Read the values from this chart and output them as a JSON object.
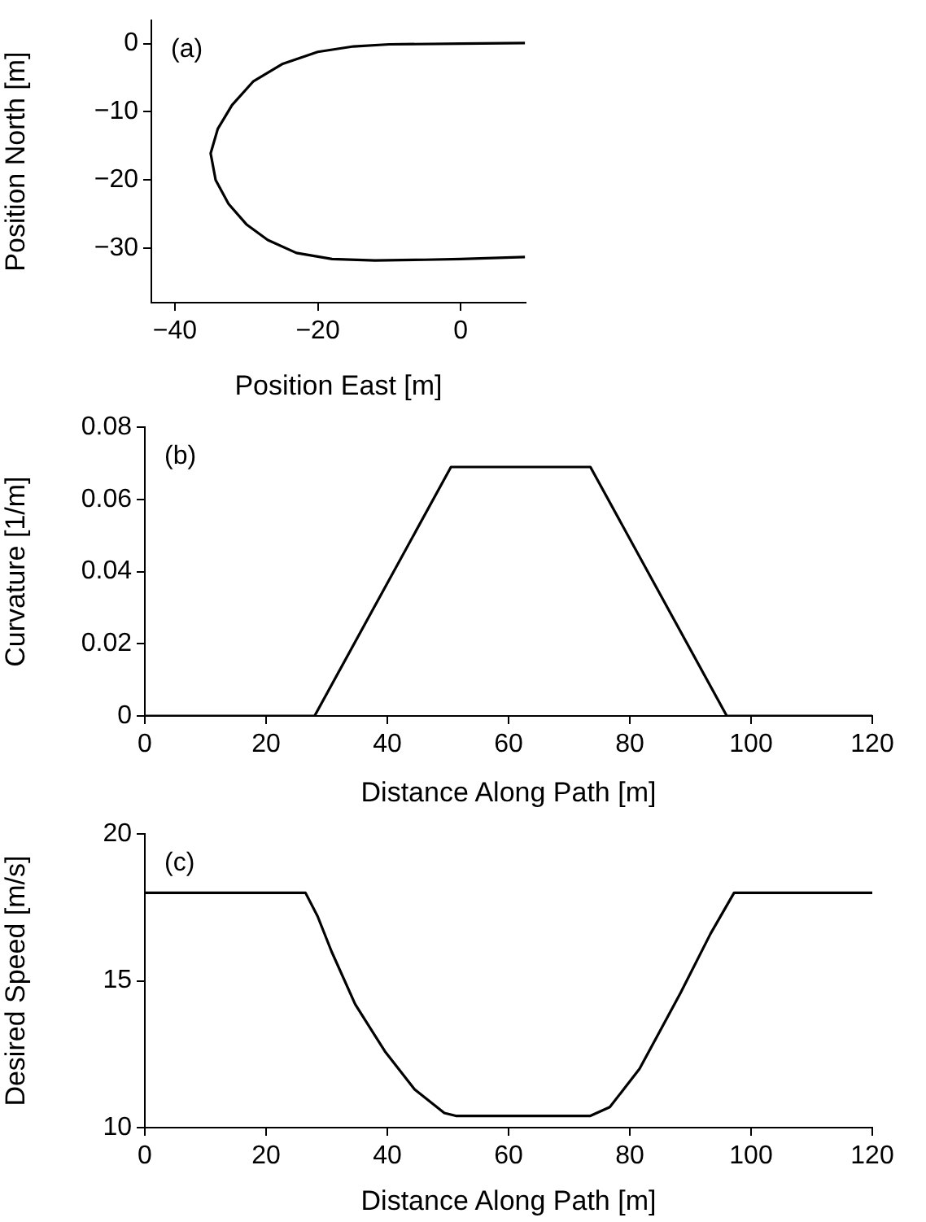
{
  "chart_data": [
    {
      "type": "line",
      "xlabel": "Position East [m]",
      "ylabel": "Position North [m]",
      "annotations": [
        "(a)"
      ],
      "color": "#000000",
      "marker": "none",
      "x": [
        9,
        0,
        -10,
        -15,
        -20,
        -25,
        -29,
        -32,
        -34,
        -35,
        -34.3,
        -32.5,
        -30,
        -27,
        -23,
        -18,
        -12,
        -5,
        0,
        9
      ],
      "values": [
        0.1,
        0,
        -0.1,
        -0.4,
        -1.2,
        -3,
        -5.5,
        -9,
        -12.5,
        -16.1,
        -20,
        -23.5,
        -26.5,
        -28.8,
        -30.7,
        -31.6,
        -31.8,
        -31.7,
        -31.6,
        -31.3
      ],
      "xlim": [
        -43.3,
        9.1
      ],
      "ylim": [
        -38,
        3.4
      ],
      "xticks": [
        -40,
        -20,
        0
      ],
      "yticks": [
        -30,
        -20,
        -10,
        0
      ]
    },
    {
      "type": "line",
      "xlabel": "Distance Along Path [m]",
      "ylabel": "Curvature [1/m]",
      "annotations": [
        "(b)"
      ],
      "color": "#000000",
      "marker": "none",
      "x": [
        0,
        28,
        50.5,
        73.5,
        96,
        120
      ],
      "values": [
        0,
        0,
        0.069,
        0.069,
        0,
        0
      ],
      "xlim": [
        0,
        120
      ],
      "ylim": [
        0,
        0.08
      ],
      "xticks": [
        0,
        20,
        40,
        60,
        80,
        100,
        120
      ],
      "yticks": [
        0,
        0.02,
        0.04,
        0.06,
        0.08
      ]
    },
    {
      "type": "line",
      "xlabel": "Distance Along Path [m]",
      "ylabel": "Desired Speed [m/s]",
      "annotations": [
        "(c)"
      ],
      "color": "#000000",
      "marker": "none",
      "x": [
        0,
        26.5,
        28.5,
        30.8,
        34.7,
        39.6,
        44.5,
        49.4,
        51.3,
        73.5,
        76.7,
        81.6,
        88.4,
        93.3,
        97.2,
        120
      ],
      "values": [
        18,
        18,
        17.2,
        16,
        14.2,
        12.6,
        11.3,
        10.5,
        10.4,
        10.4,
        10.7,
        12,
        14.6,
        16.6,
        18,
        18
      ],
      "xlim": [
        0,
        120
      ],
      "ylim": [
        10,
        20
      ],
      "xticks": [
        0,
        20,
        40,
        60,
        80,
        100,
        120
      ],
      "yticks": [
        10,
        15,
        20
      ]
    }
  ]
}
